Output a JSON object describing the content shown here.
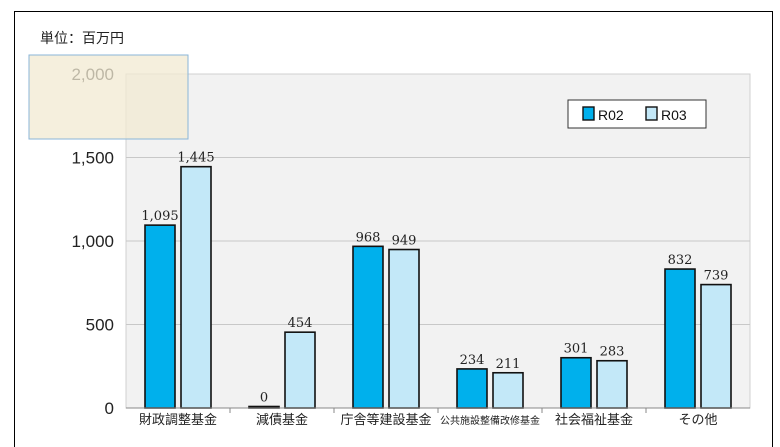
{
  "unit_label": "単位：百万円",
  "chart_data": {
    "type": "bar",
    "categories": [
      "財政調整基金",
      "減債基金",
      "庁舎等建設基金",
      "公共施設整備改修基金",
      "社会福祉基金",
      "その他"
    ],
    "series": [
      {
        "name": "R02",
        "values": [
          1095,
          0,
          968,
          234,
          301,
          832
        ],
        "labels": [
          "1,095",
          "0",
          "968",
          "234",
          "301",
          "832"
        ],
        "color": "#00b0ec"
      },
      {
        "name": "R03",
        "values": [
          1445,
          454,
          949,
          211,
          283,
          739
        ],
        "labels": [
          "1,445",
          "454",
          "949",
          "211",
          "283",
          "739"
        ],
        "color": "#c3e8f8"
      }
    ],
    "yticks": [
      0,
      500,
      1000,
      1500,
      2000
    ],
    "ytick_labels": [
      "0",
      "500",
      "1,000",
      "1,500",
      "2,000"
    ],
    "ylim": [
      0,
      2000
    ],
    "legend_position": "top-right",
    "grid": true
  }
}
